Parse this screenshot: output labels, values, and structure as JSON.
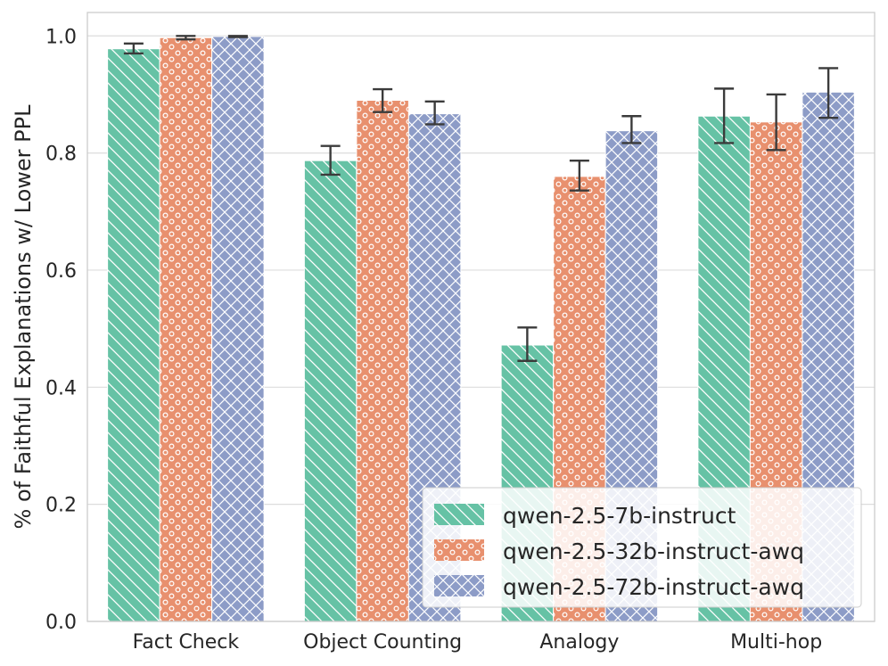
{
  "chart_data": {
    "type": "bar",
    "title": "",
    "xlabel": "",
    "ylabel": "% of Faithful Explanations w/ Lower PPL",
    "ylim": [
      0.0,
      1.04
    ],
    "yticks": [
      "0.0",
      "0.2",
      "0.4",
      "0.6",
      "0.8",
      "1.0"
    ],
    "ytick_values": [
      0.0,
      0.2,
      0.4,
      0.6,
      0.8,
      1.0
    ],
    "grid": true,
    "legend_position": "bottom-right",
    "categories": [
      "Fact Check",
      "Object Counting",
      "Analogy",
      "Multi-hop"
    ],
    "series": [
      {
        "name": "qwen-2.5-7b-instruct",
        "color": "#66c2a5",
        "hatch": "diagonal",
        "values": [
          0.978,
          0.787,
          0.472,
          0.863
        ],
        "err_low": [
          0.97,
          0.763,
          0.445,
          0.817
        ],
        "err_high": [
          0.987,
          0.812,
          0.502,
          0.91
        ]
      },
      {
        "name": "qwen-2.5-32b-instruct-awq",
        "color": "#e8906e",
        "hatch": "circles",
        "values": [
          0.997,
          0.89,
          0.76,
          0.853
        ],
        "err_low": [
          0.994,
          0.87,
          0.736,
          0.805
        ],
        "err_high": [
          1.0,
          0.909,
          0.787,
          0.9
        ]
      },
      {
        "name": "qwen-2.5-72b-instruct-awq",
        "color": "#8d9cc7",
        "hatch": "crosshatch",
        "values": [
          0.999,
          0.867,
          0.838,
          0.904
        ],
        "err_low": [
          0.998,
          0.849,
          0.817,
          0.86
        ],
        "err_high": [
          1.0,
          0.888,
          0.863,
          0.945
        ]
      }
    ]
  }
}
